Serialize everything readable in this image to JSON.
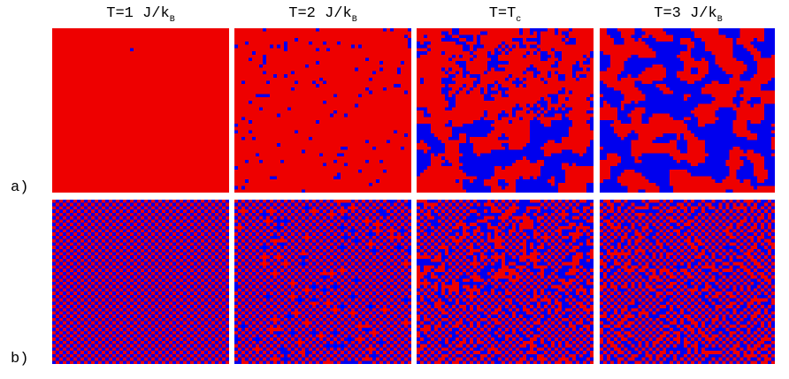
{
  "columns": [
    {
      "label_main": "T=1 J/k",
      "label_sub": "B"
    },
    {
      "label_main": "T=2 J/k",
      "label_sub": "B"
    },
    {
      "label_main": "T=T",
      "label_sub": "c"
    },
    {
      "label_main": "T=3 J/k",
      "label_sub": "B"
    }
  ],
  "rows": [
    {
      "label": "a)",
      "ordering": "ferromagnetic"
    },
    {
      "label": "b)",
      "ordering": "antiferromagnetic"
    }
  ],
  "lattice_size": 50,
  "colors": {
    "spin_up": "#ee0000",
    "spin_down": "#0000ee",
    "background": "#ffffff"
  }
}
